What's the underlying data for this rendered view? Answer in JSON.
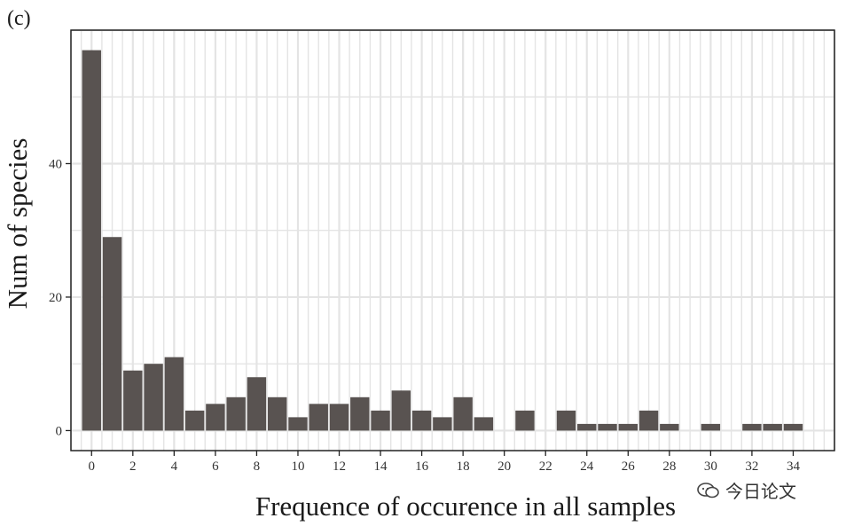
{
  "panel_label": "(c)",
  "watermark": {
    "icon": "chat-bubble-icon",
    "text": "今日论文"
  },
  "colors": {
    "bar": "#595351",
    "grid": "#e4e4e4",
    "axis": "#222222",
    "background": "#ffffff"
  },
  "chart_data": {
    "type": "bar",
    "title": "",
    "xlabel": "Frequence of occurence in all samples",
    "ylabel": "Num of species",
    "x": [
      0,
      1,
      2,
      3,
      4,
      5,
      6,
      7,
      8,
      9,
      10,
      11,
      12,
      13,
      14,
      15,
      16,
      17,
      18,
      19,
      20,
      21,
      22,
      23,
      24,
      25,
      26,
      27,
      28,
      29,
      30,
      31,
      32,
      33,
      34
    ],
    "values": [
      57,
      29,
      9,
      10,
      11,
      3,
      4,
      5,
      8,
      5,
      2,
      4,
      4,
      5,
      3,
      6,
      3,
      2,
      5,
      2,
      0,
      3,
      0,
      3,
      1,
      1,
      1,
      3,
      1,
      0,
      1,
      0,
      1,
      1,
      1
    ],
    "xticks": [
      0,
      2,
      4,
      6,
      8,
      10,
      12,
      14,
      16,
      18,
      20,
      22,
      24,
      26,
      28,
      30,
      32,
      34
    ],
    "xtick_labels": [
      "0",
      "2",
      "4",
      "6",
      "8",
      "10",
      "12",
      "14",
      "16",
      "18",
      "20",
      "22",
      "24",
      "26",
      "28",
      "30",
      "32",
      "34"
    ],
    "yticks": [
      0,
      20,
      40
    ],
    "ytick_labels": [
      "0",
      "20",
      "40"
    ],
    "xlim": [
      -1,
      36
    ],
    "ylim": [
      -3,
      60
    ],
    "grid": true
  }
}
